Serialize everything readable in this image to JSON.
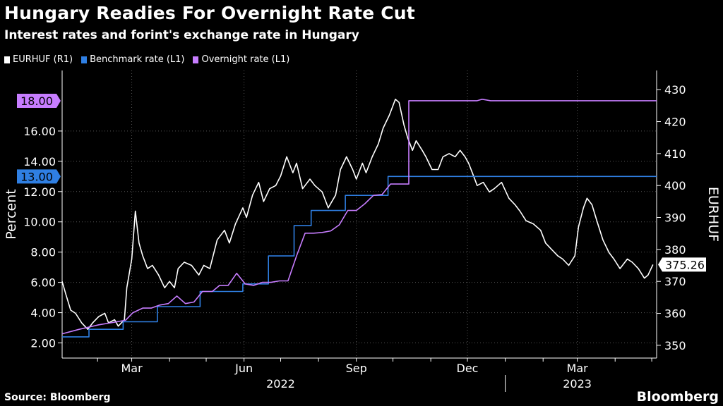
{
  "header": {
    "title": "Hungary Readies For Overnight Rate Cut",
    "subtitle": "Interest rates and forint's exchange rate in Hungary"
  },
  "footer": {
    "source": "Source: Bloomberg",
    "brand": "Bloomberg"
  },
  "colors": {
    "background": "#000000",
    "eurhuf": "#ffffff",
    "benchmark": "#2f7fe3",
    "overnight": "#c77dff",
    "axis": "#ffffff"
  },
  "chart_data": {
    "type": "line",
    "title": "Hungary Readies For Overnight Rate Cut",
    "subtitle": "Interest rates and forint's exchange rate in Hungary",
    "x_axis": {
      "range": [
        "2022-01-03",
        "2023-05-05"
      ],
      "month_ticks": [
        {
          "label": "Mar",
          "date": "2022-03-01"
        },
        {
          "label": "Jun",
          "date": "2022-06-01"
        },
        {
          "label": "Sep",
          "date": "2022-09-01"
        },
        {
          "label": "Dec",
          "date": "2022-12-01"
        },
        {
          "label": "Mar",
          "date": "2023-03-01"
        }
      ],
      "year_labels": [
        {
          "label": "2022",
          "date": "2022-07-01"
        },
        {
          "label": "2023",
          "date": "2023-03-01"
        }
      ],
      "year_separator": "2023-01-01"
    },
    "y_left": {
      "label": "Percent",
      "range": [
        1.0,
        20.0
      ],
      "ticks": [
        "2.00",
        "4.00",
        "6.00",
        "8.00",
        "10.00",
        "12.00",
        "14.00",
        "16.00"
      ]
    },
    "y_right": {
      "label": "EURHUF",
      "range": [
        346,
        436
      ],
      "ticks": [
        "350",
        "360",
        "370",
        "380",
        "390",
        "400",
        "410",
        "420",
        "430"
      ]
    },
    "legend": {
      "placement": "top-left"
    },
    "end_labels": [
      {
        "series": "Overnight rate (L1)",
        "text": "18.00",
        "value": 18.0
      },
      {
        "series": "Benchmark rate (L1)",
        "text": "13.00",
        "value": 13.0
      },
      {
        "series": "EURHUF (R1)",
        "text": "375.26",
        "value": 375.26
      }
    ],
    "series": [
      {
        "name": "EURHUF (R1)",
        "axis": "right",
        "color": "#ffffff",
        "points": [
          [
            "2022-01-03",
            370
          ],
          [
            "2022-01-06",
            366
          ],
          [
            "2022-01-10",
            361
          ],
          [
            "2022-01-14",
            360
          ],
          [
            "2022-01-19",
            357
          ],
          [
            "2022-01-24",
            355
          ],
          [
            "2022-01-28",
            357
          ],
          [
            "2022-02-02",
            359
          ],
          [
            "2022-02-07",
            360
          ],
          [
            "2022-02-10",
            357
          ],
          [
            "2022-02-15",
            358
          ],
          [
            "2022-02-18",
            356
          ],
          [
            "2022-02-23",
            358
          ],
          [
            "2022-02-25",
            368
          ],
          [
            "2022-03-01",
            377
          ],
          [
            "2022-03-04",
            392
          ],
          [
            "2022-03-07",
            382
          ],
          [
            "2022-03-10",
            378
          ],
          [
            "2022-03-14",
            374
          ],
          [
            "2022-03-18",
            375
          ],
          [
            "2022-03-23",
            372
          ],
          [
            "2022-03-28",
            368
          ],
          [
            "2022-04-01",
            370
          ],
          [
            "2022-04-05",
            368
          ],
          [
            "2022-04-08",
            374
          ],
          [
            "2022-04-13",
            376
          ],
          [
            "2022-04-19",
            375
          ],
          [
            "2022-04-25",
            372
          ],
          [
            "2022-04-29",
            375
          ],
          [
            "2022-05-04",
            374
          ],
          [
            "2022-05-10",
            383
          ],
          [
            "2022-05-16",
            386
          ],
          [
            "2022-05-20",
            382
          ],
          [
            "2022-05-25",
            388
          ],
          [
            "2022-05-31",
            393
          ],
          [
            "2022-06-03",
            390
          ],
          [
            "2022-06-08",
            397
          ],
          [
            "2022-06-13",
            401
          ],
          [
            "2022-06-17",
            395
          ],
          [
            "2022-06-22",
            399
          ],
          [
            "2022-06-27",
            400
          ],
          [
            "2022-07-01",
            403
          ],
          [
            "2022-07-06",
            409
          ],
          [
            "2022-07-11",
            404
          ],
          [
            "2022-07-14",
            407
          ],
          [
            "2022-07-19",
            399
          ],
          [
            "2022-07-25",
            402
          ],
          [
            "2022-07-29",
            400
          ],
          [
            "2022-08-04",
            398
          ],
          [
            "2022-08-09",
            393
          ],
          [
            "2022-08-15",
            397
          ],
          [
            "2022-08-19",
            405
          ],
          [
            "2022-08-24",
            409
          ],
          [
            "2022-08-29",
            405
          ],
          [
            "2022-09-01",
            402
          ],
          [
            "2022-09-06",
            407
          ],
          [
            "2022-09-09",
            404
          ],
          [
            "2022-09-14",
            409
          ],
          [
            "2022-09-19",
            413
          ],
          [
            "2022-09-23",
            418
          ],
          [
            "2022-09-28",
            422
          ],
          [
            "2022-10-03",
            427
          ],
          [
            "2022-10-06",
            426
          ],
          [
            "2022-10-10",
            419
          ],
          [
            "2022-10-13",
            415
          ],
          [
            "2022-10-17",
            411
          ],
          [
            "2022-10-20",
            414
          ],
          [
            "2022-10-25",
            411
          ],
          [
            "2022-10-28",
            409
          ],
          [
            "2022-11-02",
            405
          ],
          [
            "2022-11-07",
            405
          ],
          [
            "2022-11-11",
            409
          ],
          [
            "2022-11-16",
            410
          ],
          [
            "2022-11-21",
            409
          ],
          [
            "2022-11-25",
            411
          ],
          [
            "2022-11-29",
            409
          ],
          [
            "2022-12-02",
            407
          ],
          [
            "2022-12-06",
            403
          ],
          [
            "2022-12-09",
            400
          ],
          [
            "2022-12-14",
            401
          ],
          [
            "2022-12-19",
            398
          ],
          [
            "2022-12-23",
            399
          ],
          [
            "2022-12-29",
            401
          ],
          [
            "2023-01-04",
            396
          ],
          [
            "2023-01-09",
            394
          ],
          [
            "2023-01-13",
            392
          ],
          [
            "2023-01-18",
            389
          ],
          [
            "2023-01-24",
            388
          ],
          [
            "2023-01-30",
            386
          ],
          [
            "2023-02-03",
            382
          ],
          [
            "2023-02-08",
            380
          ],
          [
            "2023-02-13",
            378
          ],
          [
            "2023-02-17",
            377
          ],
          [
            "2023-02-22",
            375
          ],
          [
            "2023-02-27",
            378
          ],
          [
            "2023-03-02",
            387
          ],
          [
            "2023-03-06",
            393
          ],
          [
            "2023-03-09",
            396
          ],
          [
            "2023-03-13",
            394
          ],
          [
            "2023-03-17",
            389
          ],
          [
            "2023-03-22",
            383
          ],
          [
            "2023-03-27",
            379
          ],
          [
            "2023-03-31",
            377
          ],
          [
            "2023-04-05",
            374
          ],
          [
            "2023-04-11",
            377
          ],
          [
            "2023-04-15",
            376
          ],
          [
            "2023-04-20",
            374
          ],
          [
            "2023-04-25",
            371
          ],
          [
            "2023-04-28",
            372
          ],
          [
            "2023-05-02",
            375.26
          ]
        ]
      },
      {
        "name": "Benchmark rate (L1)",
        "axis": "left",
        "color": "#2f7fe3",
        "points": [
          [
            "2022-01-03",
            2.4
          ],
          [
            "2022-01-25",
            2.4
          ],
          [
            "2022-01-25",
            2.9
          ],
          [
            "2022-02-22",
            2.9
          ],
          [
            "2022-02-22",
            3.4
          ],
          [
            "2022-03-22",
            3.4
          ],
          [
            "2022-03-22",
            4.4
          ],
          [
            "2022-04-26",
            4.4
          ],
          [
            "2022-04-26",
            5.4
          ],
          [
            "2022-05-31",
            5.4
          ],
          [
            "2022-05-31",
            5.9
          ],
          [
            "2022-06-21",
            5.9
          ],
          [
            "2022-06-21",
            7.75
          ],
          [
            "2022-07-12",
            7.75
          ],
          [
            "2022-07-12",
            9.75
          ],
          [
            "2022-07-26",
            9.75
          ],
          [
            "2022-07-26",
            10.75
          ],
          [
            "2022-08-23",
            10.75
          ],
          [
            "2022-08-23",
            11.75
          ],
          [
            "2022-09-27",
            11.75
          ],
          [
            "2022-09-27",
            13.0
          ],
          [
            "2023-05-05",
            13.0
          ]
        ]
      },
      {
        "name": "Overnight rate (L1)",
        "axis": "left",
        "color": "#c77dff",
        "points": [
          [
            "2022-01-03",
            2.6
          ],
          [
            "2022-01-17",
            2.9
          ],
          [
            "2022-02-02",
            3.2
          ],
          [
            "2022-02-17",
            3.4
          ],
          [
            "2022-02-24",
            3.5
          ],
          [
            "2022-03-02",
            4.0
          ],
          [
            "2022-03-10",
            4.3
          ],
          [
            "2022-03-17",
            4.3
          ],
          [
            "2022-03-24",
            4.5
          ],
          [
            "2022-03-31",
            4.6
          ],
          [
            "2022-04-07",
            5.1
          ],
          [
            "2022-04-14",
            4.6
          ],
          [
            "2022-04-21",
            4.7
          ],
          [
            "2022-04-28",
            5.4
          ],
          [
            "2022-05-06",
            5.4
          ],
          [
            "2022-05-12",
            5.8
          ],
          [
            "2022-05-19",
            5.8
          ],
          [
            "2022-05-26",
            6.6
          ],
          [
            "2022-06-02",
            5.9
          ],
          [
            "2022-06-09",
            5.8
          ],
          [
            "2022-06-16",
            6.0
          ],
          [
            "2022-06-23",
            6.0
          ],
          [
            "2022-06-30",
            6.1
          ],
          [
            "2022-07-07",
            6.1
          ],
          [
            "2022-07-14",
            7.75
          ],
          [
            "2022-07-21",
            9.25
          ],
          [
            "2022-07-28",
            9.25
          ],
          [
            "2022-08-04",
            9.3
          ],
          [
            "2022-08-11",
            9.4
          ],
          [
            "2022-08-18",
            9.8
          ],
          [
            "2022-08-25",
            10.75
          ],
          [
            "2022-09-01",
            10.75
          ],
          [
            "2022-09-08",
            11.2
          ],
          [
            "2022-09-15",
            11.75
          ],
          [
            "2022-09-22",
            11.8
          ],
          [
            "2022-09-29",
            12.5
          ],
          [
            "2022-10-05",
            12.5
          ],
          [
            "2022-10-14",
            12.5
          ],
          [
            "2022-10-14",
            18.0
          ],
          [
            "2022-12-09",
            18.0
          ],
          [
            "2022-12-13",
            18.1
          ],
          [
            "2022-12-20",
            18.0
          ],
          [
            "2023-05-05",
            18.0
          ]
        ]
      }
    ]
  }
}
